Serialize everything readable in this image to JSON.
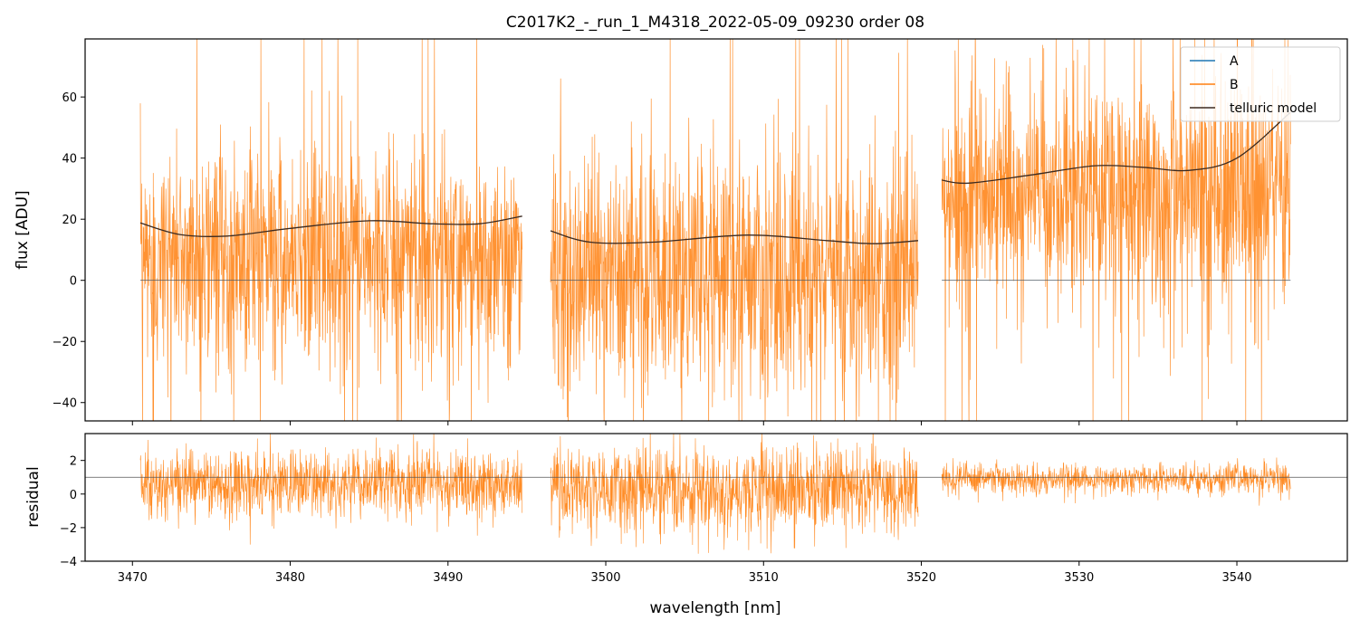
{
  "chart_data": {
    "type": "line",
    "title": "C2017K2_-_run_1_M4318_2022-05-09_09230  order 08",
    "xlabel": "wavelength [nm]",
    "xlim": [
      3467,
      3547
    ],
    "xticks": [
      3470,
      3480,
      3490,
      3500,
      3510,
      3520,
      3530,
      3540
    ],
    "colors": {
      "A": "#1f77b4",
      "B": "#ff7f0e",
      "model": "#3b2a20",
      "ref": "#555555"
    },
    "legend": {
      "position": "top-right",
      "entries": [
        "A",
        "B",
        "telluric model"
      ]
    },
    "segments": [
      {
        "x_start": 3470.5,
        "x_end": 3494.7
      },
      {
        "x_start": 3496.5,
        "x_end": 3519.8
      },
      {
        "x_start": 3521.3,
        "x_end": 3543.4
      }
    ],
    "top_panel": {
      "ylabel": "flux [ADU]",
      "ylim": [
        -46,
        79
      ],
      "yticks": [
        -40,
        -20,
        0,
        20,
        40,
        60
      ],
      "ytick_labels": [
        "−40",
        "−20",
        "0",
        "20",
        "40",
        "60"
      ],
      "series_B_noise": [
        {
          "mean": 8,
          "std": 18,
          "spike_max": 80
        },
        {
          "mean": 2,
          "std": 20,
          "spike_max": 80
        },
        {
          "mean": 28,
          "std": 20,
          "spike_max": 80
        }
      ],
      "telluric_model": [
        {
          "x": [
            3470.5,
            3473,
            3476,
            3480,
            3485,
            3489,
            3492,
            3494.7
          ],
          "y": [
            18.8,
            15.0,
            14.5,
            17.0,
            19.5,
            18.5,
            18.5,
            21.0
          ]
        },
        {
          "x": [
            3496.5,
            3499,
            3503,
            3509,
            3514,
            3517,
            3519.8
          ],
          "y": [
            16.2,
            12.5,
            12.5,
            14.8,
            13.0,
            12.0,
            13.0
          ]
        },
        {
          "x": [
            3521.3,
            3523,
            3527,
            3531,
            3534,
            3537,
            3540,
            3543.4
          ],
          "y": [
            32.8,
            31.8,
            34.5,
            37.5,
            37.0,
            36.0,
            40.0,
            55.0
          ]
        }
      ],
      "zero_line": 0
    },
    "bottom_panel": {
      "ylabel": "residual",
      "ylim": [
        -4,
        3.6
      ],
      "yticks": [
        -4,
        -2,
        0,
        2
      ],
      "ytick_labels": [
        "−4",
        "−2",
        "0",
        "2"
      ],
      "reference_line": 1,
      "series_B_noise": [
        {
          "mean": 0.6,
          "std": 1.0
        },
        {
          "mean": 0.3,
          "std": 1.3
        },
        {
          "mean": 0.9,
          "std": 0.45
        }
      ]
    }
  }
}
